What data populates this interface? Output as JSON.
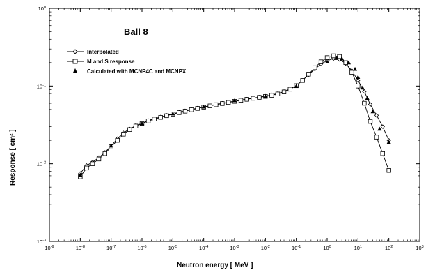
{
  "chart_data": {
    "type": "line",
    "title": "Ball 8",
    "xlabel": "Neutron energy [ MeV ]",
    "ylabel": "Response [ cm² ]",
    "xscale": "log",
    "yscale": "log",
    "xlim": [
      1e-09,
      1000
    ],
    "ylim": [
      0.001,
      1
    ],
    "x_ticks": [
      {
        "mant": "10",
        "exp": "-9"
      },
      {
        "mant": "10",
        "exp": "-8"
      },
      {
        "mant": "10",
        "exp": "-7"
      },
      {
        "mant": "10",
        "exp": "-6"
      },
      {
        "mant": "10",
        "exp": "-5"
      },
      {
        "mant": "10",
        "exp": "-4"
      },
      {
        "mant": "10",
        "exp": "-3"
      },
      {
        "mant": "10",
        "exp": "-2"
      },
      {
        "mant": "10",
        "exp": "-1"
      },
      {
        "mant": "10",
        "exp": "0"
      },
      {
        "mant": "10",
        "exp": "1"
      },
      {
        "mant": "10",
        "exp": "2"
      },
      {
        "mant": "10",
        "exp": "3"
      }
    ],
    "y_ticks": [
      {
        "mant": "10",
        "exp": "-3"
      },
      {
        "mant": "10",
        "exp": "-2"
      },
      {
        "mant": "10",
        "exp": "-1"
      },
      {
        "mant": "10",
        "exp": "0"
      }
    ],
    "legend_position": "top-left",
    "grid": false,
    "series": [
      {
        "name": "Interpolated",
        "marker": "diamond",
        "line": true,
        "x": [
          1e-08,
          1.6e-08,
          2.5e-08,
          4e-08,
          6.3e-08,
          1e-07,
          1.6e-07,
          2.5e-07,
          4e-07,
          6.3e-07,
          1e-06,
          1.6e-06,
          2.5e-06,
          4e-06,
          6.3e-06,
          1e-05,
          1.6e-05,
          2.5e-05,
          4e-05,
          6.3e-05,
          0.0001,
          0.00016,
          0.00025,
          0.0004,
          0.00063,
          0.001,
          0.0016,
          0.0025,
          0.004,
          0.0063,
          0.01,
          0.016,
          0.025,
          0.04,
          0.063,
          0.1,
          0.16,
          0.25,
          0.4,
          0.63,
          1,
          1.6,
          2.5,
          4,
          6.3,
          10,
          16,
          25,
          40,
          63,
          100
        ],
        "y": [
          0.0075,
          0.0095,
          0.0105,
          0.012,
          0.014,
          0.017,
          0.021,
          0.025,
          0.028,
          0.031,
          0.033,
          0.036,
          0.038,
          0.04,
          0.042,
          0.044,
          0.046,
          0.048,
          0.05,
          0.052,
          0.054,
          0.056,
          0.058,
          0.06,
          0.062,
          0.064,
          0.066,
          0.068,
          0.07,
          0.072,
          0.074,
          0.077,
          0.08,
          0.085,
          0.092,
          0.102,
          0.118,
          0.14,
          0.165,
          0.192,
          0.212,
          0.225,
          0.22,
          0.195,
          0.158,
          0.118,
          0.085,
          0.058,
          0.042,
          0.03,
          0.02
        ]
      },
      {
        "name": "M and S response",
        "marker": "square",
        "line": true,
        "x": [
          1e-08,
          1.6e-08,
          2.5e-08,
          4e-08,
          6.3e-08,
          1e-07,
          1.6e-07,
          2.5e-07,
          4e-07,
          6.3e-07,
          1e-06,
          1.6e-06,
          2.5e-06,
          4e-06,
          6.3e-06,
          1e-05,
          1.6e-05,
          2.5e-05,
          4e-05,
          6.3e-05,
          0.0001,
          0.00016,
          0.00025,
          0.0004,
          0.00063,
          0.001,
          0.0016,
          0.0025,
          0.004,
          0.0063,
          0.01,
          0.016,
          0.025,
          0.04,
          0.063,
          0.1,
          0.16,
          0.25,
          0.4,
          0.63,
          1,
          1.6,
          2.5,
          4,
          6.3,
          10,
          16,
          25,
          40,
          63,
          100
        ],
        "y": [
          0.0068,
          0.0088,
          0.01,
          0.0115,
          0.0135,
          0.0165,
          0.02,
          0.024,
          0.0275,
          0.0305,
          0.033,
          0.0355,
          0.0375,
          0.0395,
          0.0415,
          0.0435,
          0.0455,
          0.0475,
          0.0495,
          0.0515,
          0.0535,
          0.0555,
          0.0575,
          0.0595,
          0.0615,
          0.0635,
          0.0655,
          0.0675,
          0.0695,
          0.0715,
          0.0735,
          0.076,
          0.079,
          0.084,
          0.091,
          0.101,
          0.118,
          0.142,
          0.172,
          0.205,
          0.232,
          0.245,
          0.24,
          0.2,
          0.15,
          0.1,
          0.06,
          0.035,
          0.022,
          0.0135,
          0.0082
        ]
      },
      {
        "name": "Calculated with MCNP4C and MCNPX",
        "marker": "triangle",
        "line": false,
        "x": [
          1e-08,
          1e-07,
          1e-06,
          1e-05,
          0.0001,
          0.001,
          0.01,
          0.1,
          1,
          2,
          3,
          5,
          8,
          10,
          14,
          20,
          30,
          50,
          100
        ],
        "y": [
          0.0072,
          0.017,
          0.033,
          0.044,
          0.054,
          0.065,
          0.074,
          0.1,
          0.205,
          0.228,
          0.225,
          0.2,
          0.165,
          0.13,
          0.095,
          0.07,
          0.047,
          0.028,
          0.019
        ]
      }
    ]
  }
}
